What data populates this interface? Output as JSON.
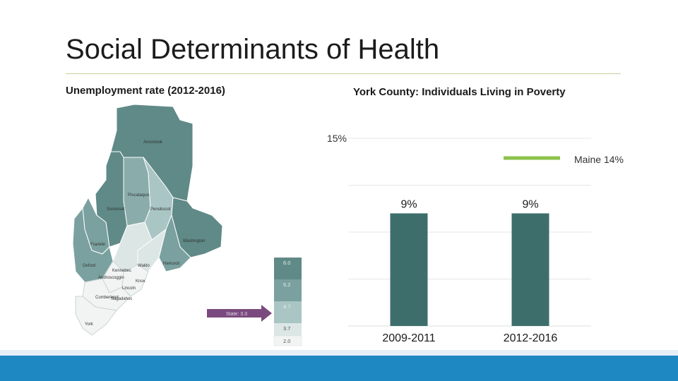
{
  "slide": {
    "title": "Social Determinants of Health"
  },
  "map_panel": {
    "heading": "Unemployment rate (2012-2016)",
    "legend": {
      "classes": [
        {
          "label": "6.0",
          "color": "#5f8a87"
        },
        {
          "label": "5.2",
          "color": "#7aa19f"
        },
        {
          "label": "4.7",
          "color": "#a9c5c4"
        },
        {
          "label": "3.7",
          "color": "#dbe6e5"
        },
        {
          "label": "2.0",
          "color": "#f2f4f4"
        }
      ],
      "state_marker": "State: 3.3",
      "marker_color": "#7a4a7e"
    },
    "county_labels": [
      "Aroostook",
      "Piscataquis",
      "Somerset",
      "Penobscot",
      "Franklin",
      "Oxford",
      "Kennebec",
      "Waldo",
      "Hancock",
      "Washington",
      "Androscoggin",
      "Knox",
      "Lincoln",
      "Sagadahoc",
      "Cumberland",
      "York"
    ]
  },
  "chart_panel": {
    "heading": "York County: Individuals Living in Poverty",
    "bar_color": "#3d6e6c",
    "ref_color": "#8bc34a"
  },
  "chart_data": {
    "type": "bar",
    "title": "York County: Individuals Living in Poverty",
    "categories": [
      "2009-2011",
      "2012-2016"
    ],
    "values": [
      9,
      9
    ],
    "value_labels": [
      "9%",
      "9%"
    ],
    "ylim": [
      0,
      15
    ],
    "y_ticks": [
      {
        "value": 15,
        "label": "15%"
      }
    ],
    "reference": {
      "label": "Maine 14%",
      "value": 14
    },
    "grid": true,
    "legend": "top-right"
  }
}
